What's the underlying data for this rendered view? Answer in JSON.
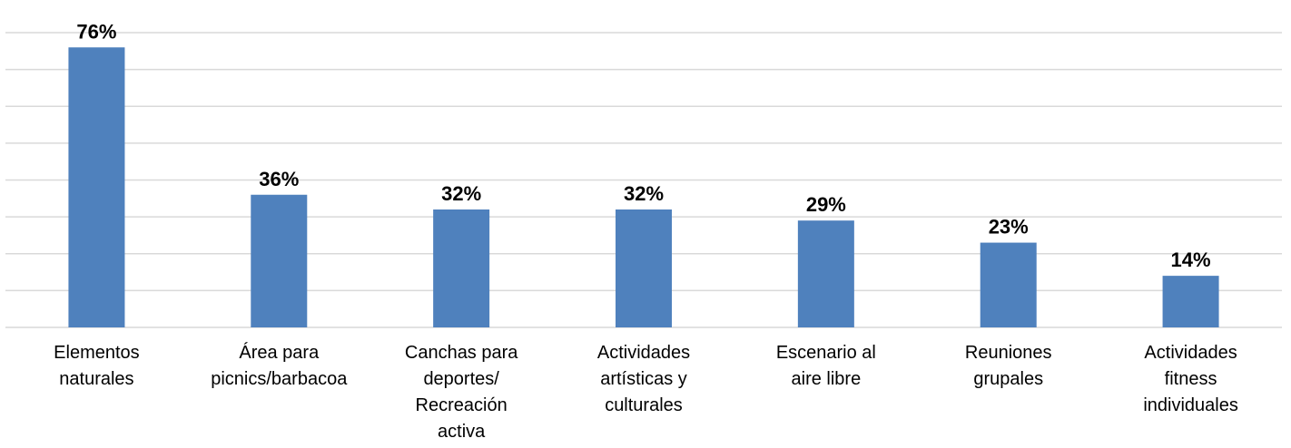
{
  "chart_data": {
    "type": "bar",
    "categories": [
      "Elementos\nnaturales",
      "Área para\npicnics/barbacoa",
      "Canchas para\ndeportes/\nRecreación\nactiva",
      "Actividades\nartísticas y\nculturales",
      "Escenario al\naire libre",
      "Reuniones\ngrupales",
      "Actividades\nfitness\nindividuales"
    ],
    "values": [
      76,
      36,
      32,
      32,
      29,
      23,
      14
    ],
    "value_labels": [
      "76%",
      "36%",
      "32%",
      "32%",
      "29%",
      "23%",
      "14%"
    ],
    "color": "#4f81bd",
    "ylim": [
      0,
      80
    ],
    "yticks": [
      0,
      10,
      20,
      30,
      40,
      50,
      60,
      70,
      80
    ],
    "grid": true
  }
}
